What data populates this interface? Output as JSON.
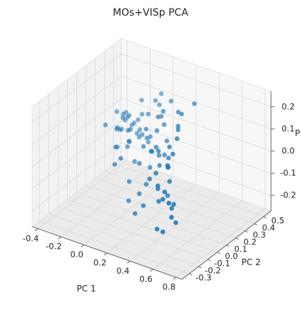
{
  "chart_data": {
    "type": "scatter",
    "dimensions": 3,
    "title": "MOs+VISp PCA",
    "xlabel": "PC 1",
    "ylabel": "PC 2",
    "zlabel": "P",
    "xlim": [
      -0.45,
      0.85
    ],
    "ylim": [
      -0.38,
      0.58
    ],
    "zlim": [
      -0.27,
      0.27
    ],
    "xticks": [
      "-0.4",
      "-0.2",
      "0.0",
      "0.2",
      "0.4",
      "0.6",
      "0.8"
    ],
    "xtick_values": [
      -0.4,
      -0.2,
      0.0,
      0.2,
      0.4,
      0.6,
      0.8
    ],
    "yticks": [
      "-0.3",
      "-0.2",
      "-0.1",
      "0.0",
      "0.1",
      "0.2",
      "0.3",
      "0.4",
      "0.5"
    ],
    "ytick_values": [
      -0.3,
      -0.2,
      -0.1,
      0.0,
      0.1,
      0.2,
      0.3,
      0.4,
      0.5
    ],
    "zticks": [
      "-0.2",
      "-0.1",
      "0.0",
      "0.1",
      "0.2"
    ],
    "ztick_values": [
      -0.2,
      -0.1,
      0.0,
      0.1,
      0.2
    ],
    "grid": true,
    "marker_color": "#1f77b4",
    "points": [
      {
        "x": -0.28,
        "y": 0.42,
        "z": 0.02
      },
      {
        "x": -0.25,
        "y": 0.4,
        "z": 0.01
      },
      {
        "x": -0.22,
        "y": 0.38,
        "z": 0.03
      },
      {
        "x": -0.2,
        "y": 0.41,
        "z": -0.01
      },
      {
        "x": -0.18,
        "y": 0.36,
        "z": 0.0
      },
      {
        "x": -0.26,
        "y": 0.35,
        "z": -0.03
      },
      {
        "x": -0.23,
        "y": 0.33,
        "z": 0.05
      },
      {
        "x": -0.15,
        "y": 0.39,
        "z": 0.02
      },
      {
        "x": -0.12,
        "y": 0.34,
        "z": -0.02
      },
      {
        "x": -0.19,
        "y": 0.3,
        "z": 0.04
      },
      {
        "x": -0.1,
        "y": 0.37,
        "z": 0.06
      },
      {
        "x": -0.08,
        "y": 0.32,
        "z": 0.01
      },
      {
        "x": -0.14,
        "y": 0.28,
        "z": -0.04
      },
      {
        "x": -0.24,
        "y": 0.27,
        "z": 0.0
      },
      {
        "x": -0.17,
        "y": 0.25,
        "z": 0.07
      },
      {
        "x": -0.06,
        "y": 0.29,
        "z": -0.01
      },
      {
        "x": -0.11,
        "y": 0.23,
        "z": 0.03
      },
      {
        "x": -0.03,
        "y": 0.35,
        "z": 0.08
      },
      {
        "x": -0.21,
        "y": 0.22,
        "z": -0.06
      },
      {
        "x": -0.01,
        "y": 0.26,
        "z": 0.02
      },
      {
        "x": -0.09,
        "y": 0.2,
        "z": -0.03
      },
      {
        "x": -0.16,
        "y": 0.18,
        "z": 0.05
      },
      {
        "x": 0.02,
        "y": 0.31,
        "z": 0.0
      },
      {
        "x": 0.04,
        "y": 0.24,
        "z": 0.06
      },
      {
        "x": -0.05,
        "y": 0.17,
        "z": 0.01
      },
      {
        "x": 0.06,
        "y": 0.28,
        "z": -0.05
      },
      {
        "x": -0.13,
        "y": 0.14,
        "z": -0.02
      },
      {
        "x": 0.08,
        "y": 0.2,
        "z": 0.04
      },
      {
        "x": 0.0,
        "y": 0.12,
        "z": 0.09
      },
      {
        "x": -0.27,
        "y": 0.31,
        "z": 0.06
      },
      {
        "x": -0.3,
        "y": 0.38,
        "z": -0.05
      },
      {
        "x": -0.07,
        "y": 0.4,
        "z": -0.07
      },
      {
        "x": -0.02,
        "y": 0.19,
        "z": -0.08
      },
      {
        "x": 0.1,
        "y": 0.33,
        "z": 0.1
      },
      {
        "x": 0.12,
        "y": 0.27,
        "z": 0.12
      },
      {
        "x": 0.05,
        "y": 0.37,
        "z": 0.13
      },
      {
        "x": 0.15,
        "y": 0.22,
        "z": 0.08
      },
      {
        "x": 0.14,
        "y": 0.3,
        "z": 0.14
      },
      {
        "x": 0.09,
        "y": 0.15,
        "z": 0.02
      },
      {
        "x": 0.18,
        "y": 0.26,
        "z": 0.1
      },
      {
        "x": -0.04,
        "y": 0.44,
        "z": 0.11
      },
      {
        "x": -0.16,
        "y": 0.44,
        "z": 0.09
      },
      {
        "x": 0.2,
        "y": 0.18,
        "z": -0.01
      },
      {
        "x": 0.17,
        "y": 0.12,
        "z": -0.05
      },
      {
        "x": 0.22,
        "y": 0.24,
        "z": 0.04
      },
      {
        "x": 0.24,
        "y": 0.1,
        "z": 0.06
      },
      {
        "x": 0.26,
        "y": 0.2,
        "z": -0.06
      },
      {
        "x": 0.11,
        "y": 0.08,
        "z": -0.03
      },
      {
        "x": 0.28,
        "y": 0.14,
        "z": 0.02
      },
      {
        "x": 0.3,
        "y": 0.05,
        "z": 0.07
      },
      {
        "x": 0.21,
        "y": 0.03,
        "z": -0.09
      },
      {
        "x": 0.33,
        "y": 0.12,
        "z": -0.02
      },
      {
        "x": 0.35,
        "y": 0.0,
        "z": 0.03
      },
      {
        "x": 0.31,
        "y": -0.04,
        "z": 0.1
      },
      {
        "x": 0.38,
        "y": 0.06,
        "z": 0.05
      },
      {
        "x": 0.4,
        "y": -0.08,
        "z": -0.04
      },
      {
        "x": 0.36,
        "y": -0.12,
        "z": 0.01
      },
      {
        "x": 0.42,
        "y": 0.02,
        "z": 0.12
      },
      {
        "x": 0.44,
        "y": -0.15,
        "z": 0.06
      },
      {
        "x": 0.46,
        "y": -0.05,
        "z": -0.07
      },
      {
        "x": 0.48,
        "y": -0.18,
        "z": 0.02
      },
      {
        "x": 0.5,
        "y": -0.1,
        "z": 0.09
      },
      {
        "x": 0.52,
        "y": -0.22,
        "z": -0.03
      },
      {
        "x": 0.55,
        "y": -0.14,
        "z": 0.04
      },
      {
        "x": 0.58,
        "y": -0.25,
        "z": 0.0
      },
      {
        "x": 0.6,
        "y": -0.18,
        "z": -0.06
      },
      {
        "x": 0.62,
        "y": -0.28,
        "z": 0.05
      },
      {
        "x": 0.65,
        "y": -0.22,
        "z": -0.02
      },
      {
        "x": 0.68,
        "y": -0.31,
        "z": 0.02
      },
      {
        "x": 0.7,
        "y": -0.26,
        "z": -0.08
      },
      {
        "x": 0.72,
        "y": -0.33,
        "z": -0.03
      },
      {
        "x": 0.66,
        "y": -0.35,
        "z": -0.1
      },
      {
        "x": 0.57,
        "y": -0.3,
        "z": -0.12
      },
      {
        "x": 0.53,
        "y": -0.08,
        "z": 0.14
      },
      {
        "x": 0.47,
        "y": 0.04,
        "z": 0.16
      },
      {
        "x": 0.39,
        "y": 0.15,
        "z": 0.15
      },
      {
        "x": 0.27,
        "y": 0.3,
        "z": 0.16
      },
      {
        "x": 0.34,
        "y": 0.25,
        "z": 0.18
      },
      {
        "x": 0.43,
        "y": 0.1,
        "z": 0.19
      },
      {
        "x": 0.29,
        "y": -0.1,
        "z": -0.13
      },
      {
        "x": 0.19,
        "y": -0.02,
        "z": -0.12
      },
      {
        "x": 0.07,
        "y": 0.02,
        "z": -0.1
      },
      {
        "x": 0.13,
        "y": -0.06,
        "z": -0.15
      },
      {
        "x": 0.25,
        "y": -0.14,
        "z": -0.16
      },
      {
        "x": -0.08,
        "y": 0.05,
        "z": -0.06
      },
      {
        "x": 0.03,
        "y": -0.02,
        "z": 0.01
      },
      {
        "x": 0.16,
        "y": 0.36,
        "z": 0.17
      },
      {
        "x": 0.01,
        "y": 0.44,
        "z": 0.15
      },
      {
        "x": -0.2,
        "y": 0.1,
        "z": 0.08
      },
      {
        "x": 0.37,
        "y": 0.35,
        "z": 0.2
      }
    ]
  }
}
